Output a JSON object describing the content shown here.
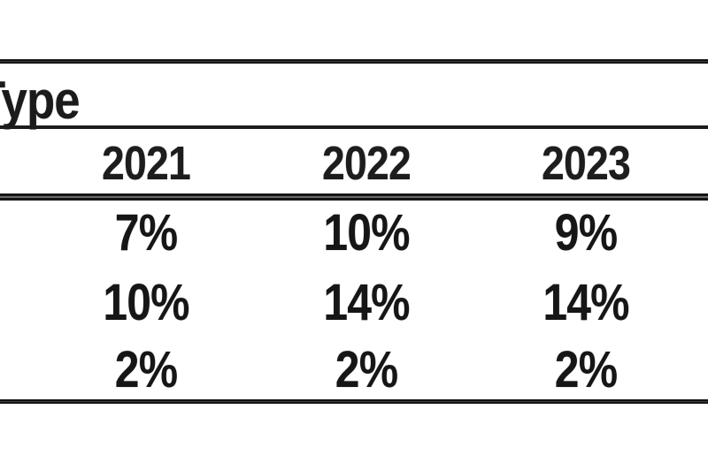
{
  "table": {
    "stub_header": "Type",
    "year_columns": [
      "2021",
      "2022",
      "2023"
    ],
    "rows": [
      {
        "values": [
          "7%",
          "10%",
          "9%"
        ]
      },
      {
        "values": [
          "10%",
          "14%",
          "14%"
        ]
      },
      {
        "values": [
          "2%",
          "2%",
          "2%"
        ]
      }
    ]
  },
  "colors": {
    "background": "#ffffff",
    "text": "#1b1b1b",
    "rule": "#1f1f1f"
  },
  "chart_data": {
    "type": "table",
    "title": "Type",
    "columns": [
      "2021",
      "2022",
      "2023"
    ],
    "rows": [
      [
        "7%",
        "10%",
        "9%"
      ],
      [
        "10%",
        "14%",
        "14%"
      ],
      [
        "2%",
        "2%",
        "2%"
      ]
    ]
  }
}
